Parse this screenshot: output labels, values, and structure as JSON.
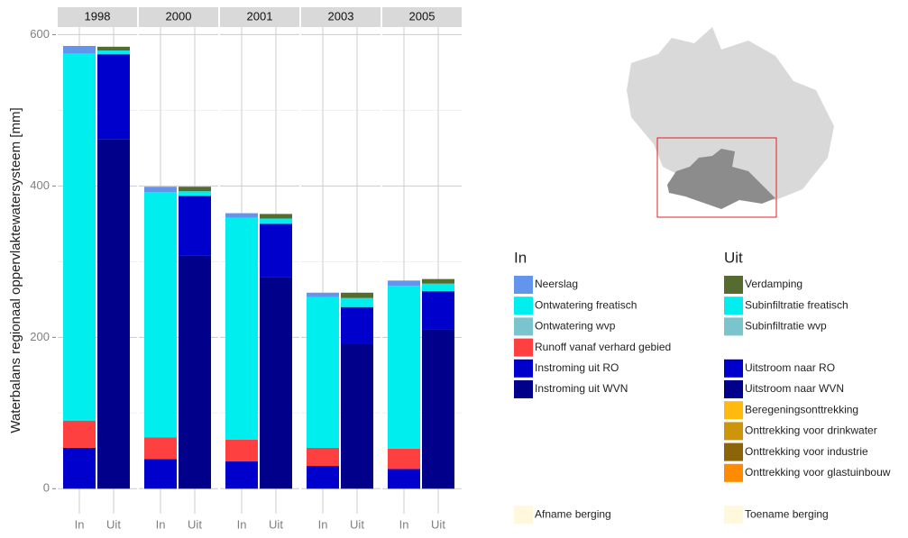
{
  "chart_data": {
    "type": "bar",
    "stacked": true,
    "y_label": "Waterbalans regionaal oppervlaktewatersysteem [mm]",
    "facets": [
      "1998",
      "2000",
      "2001",
      "2003",
      "2005"
    ],
    "ylim": [
      -33,
      610
    ],
    "yticks": [
      0,
      200,
      400,
      600
    ],
    "minor_yticks": [
      100,
      300,
      500
    ],
    "grid": true,
    "groups": [
      {
        "name": "In",
        "series": [
          {
            "name": "Neerslag",
            "color": "#6495ed",
            "values": [
              10,
              7,
              6,
              6,
              7
            ]
          },
          {
            "name": "Ontwatering freatisch",
            "color": "#00eeee",
            "values": [
              485,
              324,
              293,
              199,
              215
            ]
          },
          {
            "name": "Ontwatering wvp",
            "color": "#7ac5cd",
            "values": [
              0,
              0,
              0,
              0,
              0
            ]
          },
          {
            "name": "Runoff vanaf verhard gebied",
            "color": "#ff4040",
            "values": [
              36,
              29,
              29,
              24,
              27
            ]
          },
          {
            "name": "Instroming uit RO",
            "color": "#0000cd",
            "values": [
              54,
              39,
              36,
              30,
              26
            ]
          },
          {
            "name": "Instroming uit WVN",
            "color": "#00008b",
            "values": [
              0,
              0,
              0,
              0,
              0
            ]
          },
          {
            "name": "Afname berging",
            "color": "#fff8dc",
            "values": [
              0,
              0,
              0,
              0,
              0
            ]
          }
        ]
      },
      {
        "name": "Uit",
        "series": [
          {
            "name": "Verdamping",
            "color": "#556b2f",
            "values": [
              5,
              6,
              6,
              7,
              6
            ]
          },
          {
            "name": "Subinfiltratie freatisch",
            "color": "#00eeee",
            "values": [
              5,
              6,
              7,
              12,
              10
            ]
          },
          {
            "name": "Subinfiltratie wvp",
            "color": "#7ac5cd",
            "values": [
              0,
              0,
              0,
              0,
              0
            ]
          },
          {
            "name": "Uitstroom naar RO",
            "color": "#0000cd",
            "values": [
              112,
              79,
              70,
              48,
              50
            ]
          },
          {
            "name": "Uitstroom naar WVN",
            "color": "#00008b",
            "values": [
              462,
              308,
              280,
              192,
              211
            ]
          },
          {
            "name": "Beregeningsonttrekking",
            "color": "#ffb90f",
            "values": [
              0,
              0,
              0,
              0,
              0
            ]
          },
          {
            "name": "Onttrekking voor drinkwater",
            "color": "#cd950c",
            "values": [
              0,
              0,
              0,
              0,
              0
            ]
          },
          {
            "name": "Onttrekking voor industrie",
            "color": "#8b6508",
            "values": [
              0,
              0,
              0,
              0,
              0
            ]
          },
          {
            "name": "Onttrekking voor glastuinbouw",
            "color": "#ff8c00",
            "values": [
              0,
              0,
              0,
              0,
              0
            ]
          },
          {
            "name": "Toename berging",
            "color": "#fff8dc",
            "values": [
              0,
              0,
              0,
              0,
              0
            ]
          }
        ]
      }
    ]
  }
}
